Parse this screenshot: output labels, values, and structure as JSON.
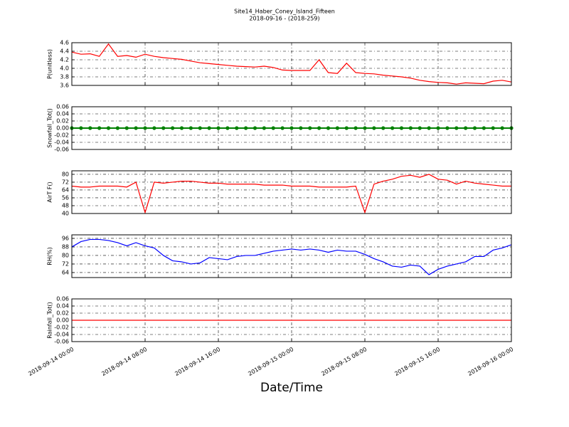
{
  "title": "Site14_Haber_Coney_Island_Fifteen",
  "subtitle": "2018-09-16 - (2018-259)",
  "xlabel": "Date/Time",
  "chart_data": [
    {
      "type": "line",
      "ylabel": "P(unitless)",
      "color": "#ff0000",
      "x": [
        "2018-09-14 00:00",
        "2018-09-14 01:00",
        "2018-09-14 02:00",
        "2018-09-14 03:00",
        "2018-09-14 04:00",
        "2018-09-14 05:00",
        "2018-09-14 06:00",
        "2018-09-14 07:00",
        "2018-09-14 08:00",
        "2018-09-14 09:00",
        "2018-09-14 10:00",
        "2018-09-14 11:00",
        "2018-09-14 12:00",
        "2018-09-14 13:00",
        "2018-09-14 14:00",
        "2018-09-14 15:00",
        "2018-09-14 16:00",
        "2018-09-14 17:00",
        "2018-09-14 18:00",
        "2018-09-14 19:00",
        "2018-09-14 20:00",
        "2018-09-14 21:00",
        "2018-09-14 22:00",
        "2018-09-14 23:00",
        "2018-09-15 00:00",
        "2018-09-15 01:00",
        "2018-09-15 02:00",
        "2018-09-15 03:00",
        "2018-09-15 04:00",
        "2018-09-15 05:00",
        "2018-09-15 06:00",
        "2018-09-15 07:00",
        "2018-09-15 08:00",
        "2018-09-15 09:00",
        "2018-09-15 10:00",
        "2018-09-15 11:00",
        "2018-09-15 12:00",
        "2018-09-15 13:00",
        "2018-09-15 14:00",
        "2018-09-15 15:00",
        "2018-09-15 16:00",
        "2018-09-15 17:00",
        "2018-09-15 18:00",
        "2018-09-15 19:00",
        "2018-09-15 20:00",
        "2018-09-15 21:00",
        "2018-09-15 22:00",
        "2018-09-15 23:00",
        "2018-09-16 00:00"
      ],
      "values": [
        4.38,
        4.33,
        4.34,
        4.28,
        4.57,
        4.28,
        4.3,
        4.26,
        4.33,
        4.28,
        4.25,
        4.23,
        4.21,
        4.17,
        4.13,
        4.11,
        4.09,
        4.07,
        4.05,
        4.04,
        4.03,
        4.05,
        4.02,
        3.96,
        3.95,
        3.95,
        3.95,
        4.2,
        3.9,
        3.88,
        4.12,
        3.9,
        3.88,
        3.87,
        3.84,
        3.82,
        3.8,
        3.77,
        3.72,
        3.69,
        3.67,
        3.66,
        3.63,
        3.66,
        3.65,
        3.64,
        3.7,
        3.72,
        3.68
      ],
      "xlim": [
        "2018-09-14 00:00",
        "2018-09-16 00:00"
      ],
      "ylim": [
        3.6,
        4.6
      ],
      "yticks": [
        3.6,
        3.8,
        {
          "value": 4,
          "label": "4.0"
        },
        4.2,
        4.4,
        4.6
      ],
      "grid": true
    },
    {
      "type": "line",
      "ylabel": "Snowfall_Tot()",
      "color": "#008000",
      "markers": true,
      "x": [
        "2018-09-14 00:00",
        "2018-09-14 01:00",
        "2018-09-14 02:00",
        "2018-09-14 03:00",
        "2018-09-14 04:00",
        "2018-09-14 05:00",
        "2018-09-14 06:00",
        "2018-09-14 07:00",
        "2018-09-14 08:00",
        "2018-09-14 09:00",
        "2018-09-14 10:00",
        "2018-09-14 11:00",
        "2018-09-14 12:00",
        "2018-09-14 13:00",
        "2018-09-14 14:00",
        "2018-09-14 15:00",
        "2018-09-14 16:00",
        "2018-09-14 17:00",
        "2018-09-14 18:00",
        "2018-09-14 19:00",
        "2018-09-14 20:00",
        "2018-09-14 21:00",
        "2018-09-14 22:00",
        "2018-09-14 23:00",
        "2018-09-15 00:00",
        "2018-09-15 01:00",
        "2018-09-15 02:00",
        "2018-09-15 03:00",
        "2018-09-15 04:00",
        "2018-09-15 05:00",
        "2018-09-15 06:00",
        "2018-09-15 07:00",
        "2018-09-15 08:00",
        "2018-09-15 09:00",
        "2018-09-15 10:00",
        "2018-09-15 11:00",
        "2018-09-15 12:00",
        "2018-09-15 13:00",
        "2018-09-15 14:00",
        "2018-09-15 15:00",
        "2018-09-15 16:00",
        "2018-09-15 17:00",
        "2018-09-15 18:00",
        "2018-09-15 19:00",
        "2018-09-15 20:00",
        "2018-09-15 21:00",
        "2018-09-15 22:00",
        "2018-09-15 23:00",
        "2018-09-16 00:00"
      ],
      "values": [
        0,
        0,
        0,
        0,
        0,
        0,
        0,
        0,
        0,
        0,
        0,
        0,
        0,
        0,
        0,
        0,
        0,
        0,
        0,
        0,
        0,
        0,
        0,
        0,
        0,
        0,
        0,
        0,
        0,
        0,
        0,
        0,
        0,
        0,
        0,
        0,
        0,
        0,
        0,
        0,
        0,
        0,
        0,
        0,
        0,
        0,
        0,
        0,
        0
      ],
      "xlim": [
        "2018-09-14 00:00",
        "2018-09-16 00:00"
      ],
      "ylim": [
        -0.06,
        0.06
      ],
      "yticks": [
        -0.06,
        -0.04,
        -0.02,
        {
          "value": 0,
          "label": "0.00"
        },
        0.02,
        0.04,
        0.06
      ],
      "grid": true
    },
    {
      "type": "line",
      "ylabel": "AirT F()",
      "color": "#ff0000",
      "x": [
        "2018-09-14 00:00",
        "2018-09-14 01:00",
        "2018-09-14 02:00",
        "2018-09-14 03:00",
        "2018-09-14 04:00",
        "2018-09-14 05:00",
        "2018-09-14 06:00",
        "2018-09-14 07:00",
        "2018-09-14 08:00",
        "2018-09-14 09:00",
        "2018-09-14 10:00",
        "2018-09-14 11:00",
        "2018-09-14 12:00",
        "2018-09-14 13:00",
        "2018-09-14 14:00",
        "2018-09-14 15:00",
        "2018-09-14 16:00",
        "2018-09-14 17:00",
        "2018-09-14 18:00",
        "2018-09-14 19:00",
        "2018-09-14 20:00",
        "2018-09-14 21:00",
        "2018-09-14 22:00",
        "2018-09-14 23:00",
        "2018-09-15 00:00",
        "2018-09-15 01:00",
        "2018-09-15 02:00",
        "2018-09-15 03:00",
        "2018-09-15 04:00",
        "2018-09-15 05:00",
        "2018-09-15 06:00",
        "2018-09-15 07:00",
        "2018-09-15 08:00",
        "2018-09-15 09:00",
        "2018-09-15 10:00",
        "2018-09-15 11:00",
        "2018-09-15 12:00",
        "2018-09-15 13:00",
        "2018-09-15 14:00",
        "2018-09-15 15:00",
        "2018-09-15 16:00",
        "2018-09-15 17:00",
        "2018-09-15 18:00",
        "2018-09-15 19:00",
        "2018-09-15 20:00",
        "2018-09-15 21:00",
        "2018-09-15 22:00",
        "2018-09-15 23:00",
        "2018-09-16 00:00"
      ],
      "values": [
        68,
        67,
        67,
        68,
        68,
        68,
        67,
        72,
        41,
        72,
        71,
        72,
        73,
        73,
        72,
        71,
        71,
        70,
        70,
        70,
        70,
        69,
        69,
        69,
        68,
        68,
        68,
        67,
        67,
        67,
        67,
        68,
        41,
        70,
        73,
        75,
        78,
        79,
        77,
        80,
        75,
        74,
        70,
        73,
        71,
        70,
        69,
        68,
        68
      ],
      "xlim": [
        "2018-09-14 00:00",
        "2018-09-16 00:00"
      ],
      "ylim": [
        40,
        83.6
      ],
      "yticks": [
        40,
        48,
        56,
        64,
        72,
        80
      ],
      "grid": true
    },
    {
      "type": "line",
      "ylabel": "RH(%)",
      "color": "#0000ff",
      "x": [
        "2018-09-14 00:00",
        "2018-09-14 01:00",
        "2018-09-14 02:00",
        "2018-09-14 03:00",
        "2018-09-14 04:00",
        "2018-09-14 05:00",
        "2018-09-14 06:00",
        "2018-09-14 07:00",
        "2018-09-14 08:00",
        "2018-09-14 09:00",
        "2018-09-14 10:00",
        "2018-09-14 11:00",
        "2018-09-14 12:00",
        "2018-09-14 13:00",
        "2018-09-14 14:00",
        "2018-09-14 15:00",
        "2018-09-14 16:00",
        "2018-09-14 17:00",
        "2018-09-14 18:00",
        "2018-09-14 19:00",
        "2018-09-14 20:00",
        "2018-09-14 21:00",
        "2018-09-14 22:00",
        "2018-09-14 23:00",
        "2018-09-15 00:00",
        "2018-09-15 01:00",
        "2018-09-15 02:00",
        "2018-09-15 03:00",
        "2018-09-15 04:00",
        "2018-09-15 05:00",
        "2018-09-15 06:00",
        "2018-09-15 07:00",
        "2018-09-15 08:00",
        "2018-09-15 09:00",
        "2018-09-15 10:00",
        "2018-09-15 11:00",
        "2018-09-15 12:00",
        "2018-09-15 13:00",
        "2018-09-15 14:00",
        "2018-09-15 15:00",
        "2018-09-15 16:00",
        "2018-09-15 17:00",
        "2018-09-15 18:00",
        "2018-09-15 19:00",
        "2018-09-15 20:00",
        "2018-09-15 21:00",
        "2018-09-15 22:00",
        "2018-09-15 23:00",
        "2018-09-16 00:00"
      ],
      "values": [
        88,
        93,
        95,
        95,
        94,
        92,
        89,
        92,
        89,
        87,
        80,
        75,
        74,
        72,
        73,
        78,
        77,
        76,
        79,
        80,
        80,
        82,
        84,
        85,
        86,
        85,
        86,
        85,
        83,
        85,
        84,
        84,
        81,
        77,
        74,
        70,
        69,
        71,
        70,
        62,
        67,
        70,
        72,
        74,
        79,
        79,
        85,
        87,
        90
      ],
      "xlim": [
        "2018-09-14 00:00",
        "2018-09-16 00:00"
      ],
      "ylim": [
        59.3,
        99.3
      ],
      "yticks": [
        64,
        72,
        80,
        88,
        96
      ],
      "grid": true
    },
    {
      "type": "line",
      "ylabel": "Rainfall_Tot()",
      "color": "#ff0000",
      "x": [
        "2018-09-14 00:00",
        "2018-09-14 01:00",
        "2018-09-14 02:00",
        "2018-09-14 03:00",
        "2018-09-14 04:00",
        "2018-09-14 05:00",
        "2018-09-14 06:00",
        "2018-09-14 07:00",
        "2018-09-14 08:00",
        "2018-09-14 09:00",
        "2018-09-14 10:00",
        "2018-09-14 11:00",
        "2018-09-14 12:00",
        "2018-09-14 13:00",
        "2018-09-14 14:00",
        "2018-09-14 15:00",
        "2018-09-14 16:00",
        "2018-09-14 17:00",
        "2018-09-14 18:00",
        "2018-09-14 19:00",
        "2018-09-14 20:00",
        "2018-09-14 21:00",
        "2018-09-14 22:00",
        "2018-09-14 23:00",
        "2018-09-15 00:00",
        "2018-09-15 01:00",
        "2018-09-15 02:00",
        "2018-09-15 03:00",
        "2018-09-15 04:00",
        "2018-09-15 05:00",
        "2018-09-15 06:00",
        "2018-09-15 07:00",
        "2018-09-15 08:00",
        "2018-09-15 09:00",
        "2018-09-15 10:00",
        "2018-09-15 11:00",
        "2018-09-15 12:00",
        "2018-09-15 13:00",
        "2018-09-15 14:00",
        "2018-09-15 15:00",
        "2018-09-15 16:00",
        "2018-09-15 17:00",
        "2018-09-15 18:00",
        "2018-09-15 19:00",
        "2018-09-15 20:00",
        "2018-09-15 21:00",
        "2018-09-15 22:00",
        "2018-09-15 23:00",
        "2018-09-16 00:00"
      ],
      "values": [
        0,
        0,
        0,
        0,
        0,
        0,
        0,
        0,
        0,
        0,
        0,
        0,
        0,
        0,
        0,
        0,
        0,
        0,
        0,
        0,
        0,
        0,
        0,
        0,
        0,
        0,
        0,
        0,
        0,
        0,
        0,
        0,
        0,
        0,
        0,
        0,
        0,
        0,
        0,
        0,
        0,
        0,
        0,
        0,
        0,
        0,
        0,
        0,
        0
      ],
      "xlim": [
        "2018-09-14 00:00",
        "2018-09-16 00:00"
      ],
      "ylim": [
        -0.06,
        0.06
      ],
      "yticks": [
        -0.06,
        -0.04,
        -0.02,
        {
          "value": 0,
          "label": "0.00"
        },
        0.02,
        0.04,
        0.06
      ],
      "xticks": [
        "2018-09-14 00:00",
        "2018-09-14 08:00",
        "2018-09-14 16:00",
        "2018-09-15 00:00",
        "2018-09-15 08:00",
        "2018-09-15 16:00",
        "2018-09-16 00:00"
      ],
      "grid": true
    }
  ]
}
